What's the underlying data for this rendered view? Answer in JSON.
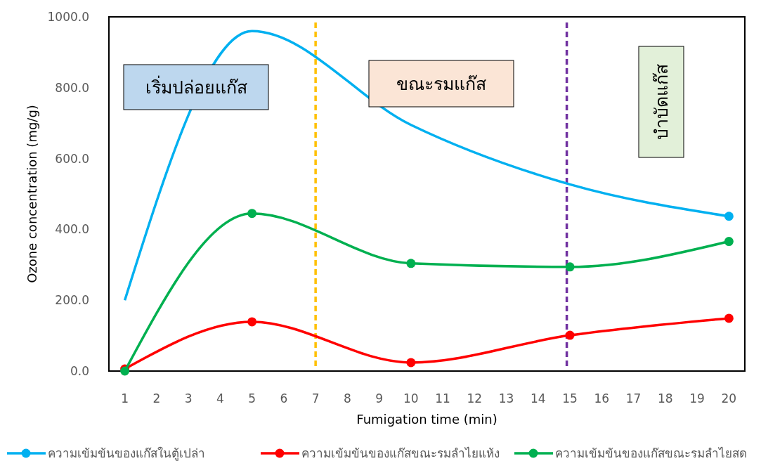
{
  "chart_data": {
    "type": "line",
    "xlabel": "Fumigation time  (min)",
    "ylabel": "Ozone concentration (mg/g)",
    "xlim": [
      0.5,
      20.5
    ],
    "xticks": [
      1,
      2,
      3,
      4,
      5,
      6,
      7,
      8,
      9,
      10,
      11,
      12,
      13,
      14,
      15,
      16,
      17,
      18,
      19,
      20
    ],
    "ylim": [
      0,
      1000
    ],
    "yticks": [
      {
        "value": 0,
        "label": "0.0"
      },
      {
        "value": 200,
        "label": "200.0"
      },
      {
        "value": 400,
        "label": "400.0"
      },
      {
        "value": 600,
        "label": "600.0"
      },
      {
        "value": 800,
        "label": "800.0"
      },
      {
        "value": 1000,
        "label": "1000.0"
      }
    ],
    "grid": false,
    "legend": "bottom",
    "marker": "circle",
    "line_style": "solid",
    "series": [
      {
        "name": "ความเข้มข้นของแก๊สในตู้เปล่า",
        "color": "#00b0f0",
        "x": [
          1,
          5,
          10,
          15,
          20
        ],
        "values": [
          200,
          960,
          695,
          527,
          437
        ],
        "marker": "none"
      },
      {
        "name": "ความเข้มข้นของแก๊สขณะรมลำไยแห้ง",
        "color": "#ff0000",
        "x": [
          1,
          5,
          10,
          15,
          20
        ],
        "values": [
          6,
          139,
          24,
          101,
          149
        ]
      },
      {
        "name": "ความเข้มข้นของแก๊สขณะรมลำไยสด",
        "color": "#00b050",
        "x": [
          1,
          5,
          10,
          15,
          20
        ],
        "values": [
          0,
          445,
          304,
          294,
          366
        ]
      },
      {
        "type": "scatter",
        "color": "#00b0f0",
        "x": [
          20
        ],
        "values": [
          437
        ]
      }
    ],
    "ref_lines": [
      {
        "axis": "x",
        "value": 7,
        "color": "#ffc000",
        "line_style": "dashed"
      },
      {
        "axis": "x",
        "value": 14.9,
        "color": "#7030a0",
        "line_style": "dashed"
      }
    ],
    "annotations": [
      "เริ่มปล่อยแก๊ส",
      "ขณะรมแก๊ส",
      "บำบัดแก๊ส"
    ]
  }
}
